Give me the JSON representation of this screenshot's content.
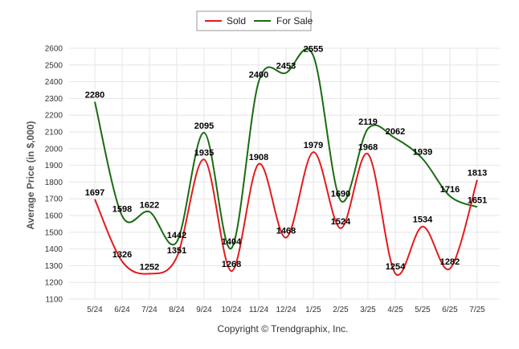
{
  "chart_data": {
    "type": "line",
    "categories": [
      "5/24",
      "6/24",
      "7/24",
      "8/24",
      "9/24",
      "10/24",
      "11/24",
      "12/24",
      "1/25",
      "2/25",
      "3/25",
      "4/25",
      "5/25",
      "6/25",
      "7/25"
    ],
    "series": [
      {
        "name": "Sold",
        "color": "#e41a1c",
        "values": [
          1697,
          1326,
          1252,
          1351,
          1935,
          1268,
          1908,
          1468,
          1979,
          1524,
          1968,
          1254,
          1534,
          1282,
          1813
        ]
      },
      {
        "name": "For Sale",
        "color": "#1a6b12",
        "values": [
          2280,
          1598,
          1622,
          1442,
          2095,
          1404,
          2400,
          2453,
          2555,
          1690,
          2119,
          2062,
          1939,
          1716,
          1651
        ]
      }
    ],
    "ylabel": "Average Price (in $,000)",
    "xlabel": "",
    "ylim": [
      1100,
      2600
    ],
    "yticks": [
      1100,
      1200,
      1300,
      1400,
      1500,
      1600,
      1700,
      1800,
      1900,
      2000,
      2100,
      2200,
      2300,
      2400,
      2500,
      2600
    ],
    "legend_position": "top-center",
    "grid": true
  },
  "footer": {
    "copyright": "Copyright © Trendgraphix, Inc."
  }
}
